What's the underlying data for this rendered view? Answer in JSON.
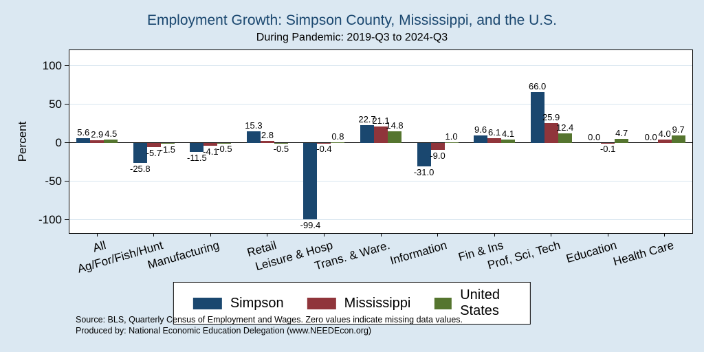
{
  "header": {
    "title": "Employment Growth: Simpson County, Mississippi, and the U.S.",
    "subtitle": "During Pandemic: 2019-Q3 to 2024-Q3"
  },
  "footer": {
    "source_line1": "Source: BLS, Quarterly Census of Employment and Wages. Zero values indicate missing data values.",
    "source_line2": "Produced by: National Economic Education Delegation (www.NEEDEcon.org)"
  },
  "colors": {
    "background": "#dbe8f2",
    "plot_background": "#ffffff",
    "title": "#1a476f",
    "axis": "#000000",
    "gridline": "#d6e4ee"
  },
  "chart_data": {
    "type": "bar",
    "title": "Employment Growth: Simpson County, Mississippi, and the U.S.",
    "subtitle": "During Pandemic: 2019-Q3 to 2024-Q3",
    "ylabel": "Percent",
    "xlabel": "",
    "categories": [
      "All",
      "Ag/For/Fish/Hunt",
      "Manufacturing",
      "Retail",
      "Leisure & Hosp",
      "Trans. & Ware.",
      "Information",
      "Fin & Ins",
      "Prof, Sci, Tech",
      "Education",
      "Health Care"
    ],
    "series": [
      {
        "name": "Simpson",
        "color": "#1a476f",
        "values": [
          5.6,
          -25.8,
          -11.5,
          15.3,
          -99.4,
          22.7,
          -31.0,
          9.6,
          66.0,
          0.0,
          0.0
        ]
      },
      {
        "name": "Mississippi",
        "color": "#90353b",
        "values": [
          2.9,
          -5.7,
          -4.1,
          2.8,
          -0.4,
          21.1,
          -9.0,
          6.1,
          25.9,
          -0.1,
          4.0
        ]
      },
      {
        "name": "United States",
        "color": "#55752f",
        "values": [
          4.5,
          -1.5,
          -0.5,
          -0.5,
          0.8,
          14.8,
          1.0,
          4.1,
          12.4,
          4.7,
          9.7
        ]
      }
    ],
    "yticks": [
      -100,
      -50,
      0,
      50,
      100
    ],
    "ylim": [
      -118,
      121
    ],
    "bar_value_labels": true,
    "grid": true,
    "legend_position": "bottom",
    "note": "Zero values indicate missing data values"
  }
}
